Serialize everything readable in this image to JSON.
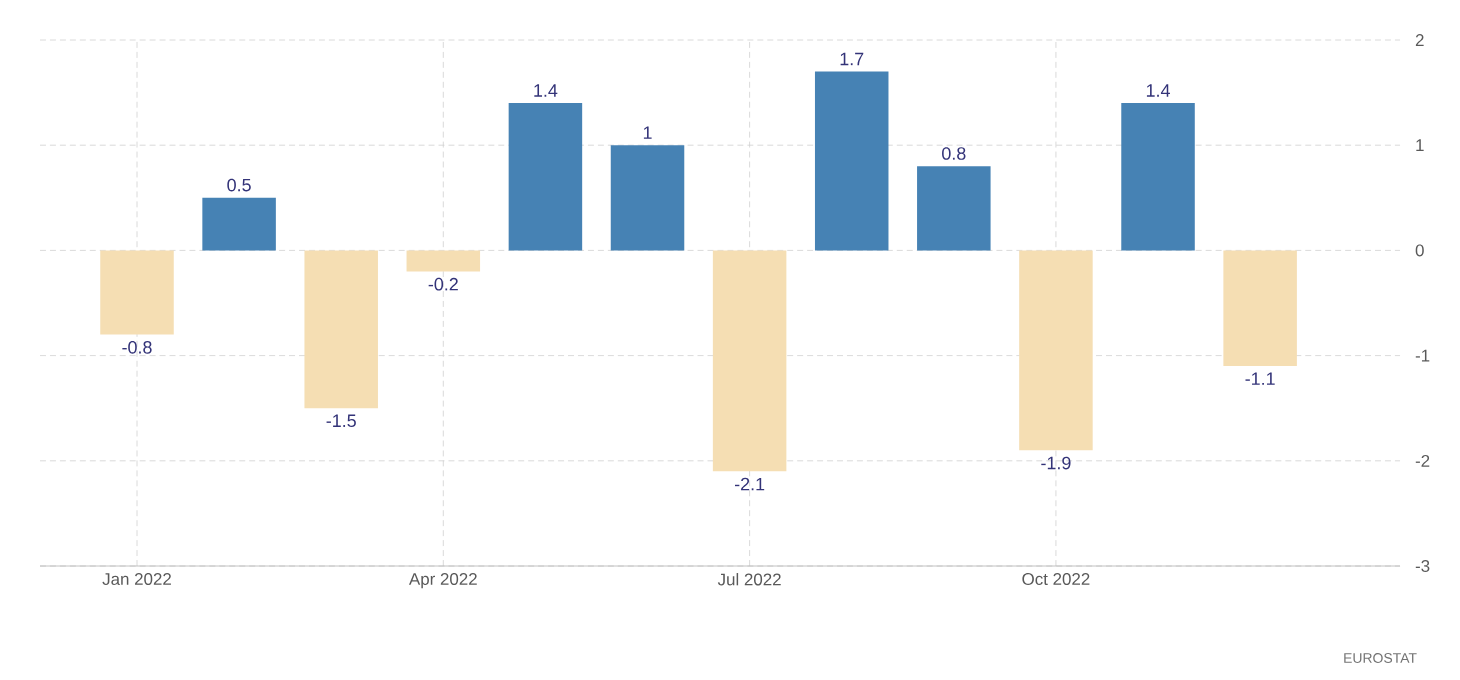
{
  "chart_data": {
    "type": "bar",
    "categories": [
      "Jan 2022",
      null,
      null,
      "Apr 2022",
      null,
      null,
      "Jul 2022",
      null,
      null,
      "Oct 2022",
      null,
      null
    ],
    "values": [
      -0.8,
      0.5,
      -1.5,
      -0.2,
      1.4,
      1,
      -2.1,
      1.7,
      0.8,
      -1.9,
      1.4,
      -1.1
    ],
    "colors": [
      "#f5deb3",
      "#4682b4",
      "#f5deb3",
      "#f5deb3",
      "#4682b4",
      "#4682b4",
      "#f5deb3",
      "#4682b4",
      "#4682b4",
      "#f5deb3",
      "#4682b4",
      "#f5deb3"
    ],
    "ylim": [
      -3,
      2
    ],
    "yticks": [
      -3,
      -2,
      -1,
      0,
      1,
      2
    ],
    "grid": true,
    "data_labels": true,
    "annotations": [
      "EUROSTAT"
    ]
  }
}
